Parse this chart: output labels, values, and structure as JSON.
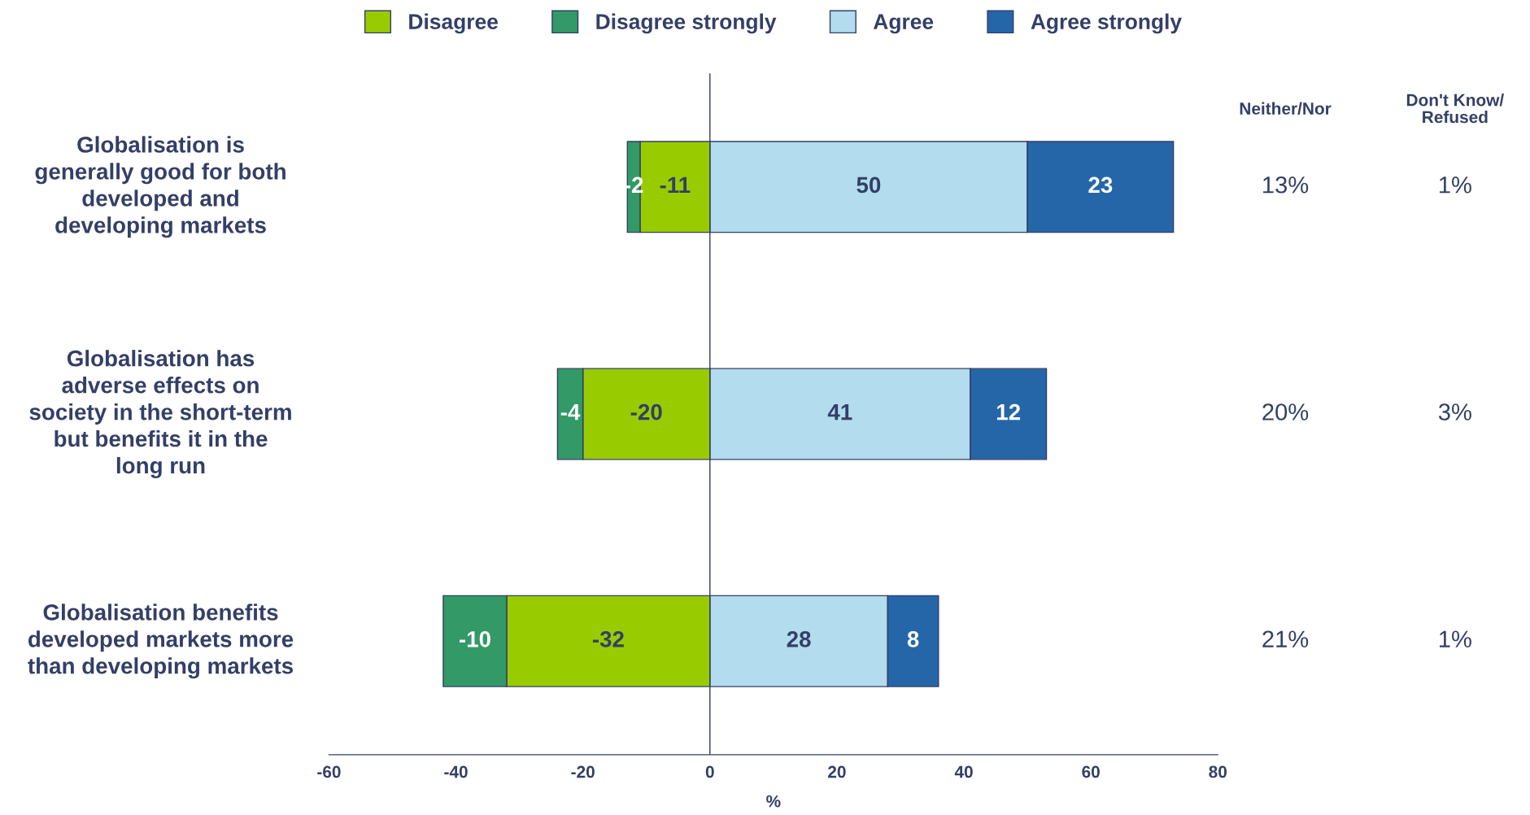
{
  "chart_data": {
    "type": "bar",
    "orientation": "horizontal",
    "stacked": true,
    "categories": [
      "Globalisation is\ngenerally good for both\ndeveloped and\ndeveloping markets",
      "Globalisation has\nadverse effects on\nsociety in the short-term\nbut benefits it in the\nlong run",
      "Globalisation benefits\ndeveloped markets more\nthan developing markets"
    ],
    "series": [
      {
        "name": "Disagree",
        "color": "#99cc00",
        "values": [
          -11,
          -20,
          -32
        ]
      },
      {
        "name": "Disagree strongly",
        "color": "#339966",
        "values": [
          -2,
          -4,
          -10
        ]
      },
      {
        "name": "Agree",
        "color": "#b3dcee",
        "values": [
          50,
          41,
          28
        ]
      },
      {
        "name": "Agree strongly",
        "color": "#2566a8",
        "values": [
          23,
          12,
          8
        ]
      }
    ],
    "xlabel": "%",
    "xlim": [
      -60,
      80
    ],
    "xticks": [
      -60,
      -40,
      -20,
      0,
      20,
      40,
      60,
      80
    ],
    "ref_lines": [
      {
        "axis": "x",
        "value": 0
      }
    ],
    "data_labels": true,
    "legend": "top",
    "grid": false,
    "annotations": [
      "Neither/Nor",
      "Don't Know/\nRefused",
      "13%",
      "1%",
      "20%",
      "3%",
      "21%",
      "1%"
    ]
  }
}
